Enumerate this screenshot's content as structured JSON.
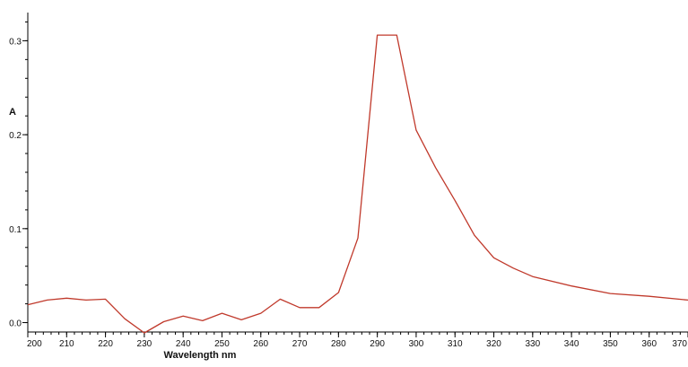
{
  "chart_data": {
    "type": "line",
    "title": "",
    "xlabel": "Wavelength nm",
    "ylabel": "A",
    "xlim": [
      200,
      370
    ],
    "ylim": [
      -0.01,
      0.33
    ],
    "x_ticks": [
      200,
      210,
      220,
      230,
      240,
      250,
      260,
      270,
      280,
      290,
      300,
      310,
      320,
      330,
      340,
      350,
      360,
      370
    ],
    "y_ticks": [
      0.0,
      0.1,
      0.2,
      0.3
    ],
    "y_tick_labels": [
      "0.0",
      "0.1",
      "0.2",
      "0.3"
    ],
    "grid": false,
    "legend": "none",
    "series": [
      {
        "color": "#c0392b",
        "x": [
          200,
          205,
          210,
          215,
          220,
          225,
          230,
          235,
          240,
          245,
          250,
          255,
          260,
          265,
          270,
          275,
          280,
          285,
          290,
          295,
          300,
          305,
          310,
          315,
          320,
          325,
          330,
          340,
          350,
          360,
          370
        ],
        "y": [
          0.019,
          0.024,
          0.026,
          0.024,
          0.025,
          0.004,
          -0.011,
          0.001,
          0.007,
          0.002,
          0.01,
          0.003,
          0.01,
          0.025,
          0.016,
          0.016,
          0.032,
          0.09,
          0.306,
          0.306,
          0.205,
          0.165,
          0.13,
          0.093,
          0.069,
          0.058,
          0.049,
          0.039,
          0.031,
          0.028,
          0.024
        ]
      }
    ]
  }
}
